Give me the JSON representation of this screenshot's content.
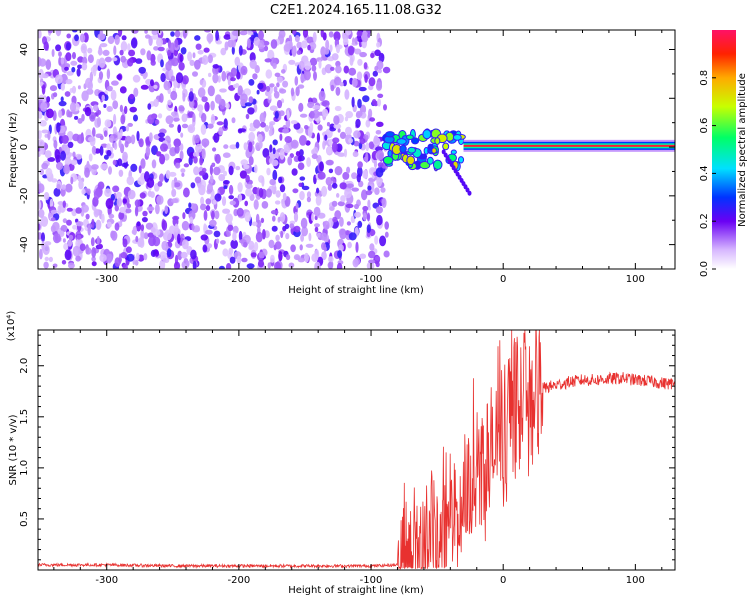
{
  "figure": {
    "title": "C2E1.2024.165.11.08.G32"
  },
  "chart_data": [
    {
      "type": "heatmap",
      "name": "spectrogram",
      "xlabel": "Height of straight line (km)",
      "ylabel": "Frequency (Hz)",
      "xlim": [
        -352,
        130
      ],
      "ylim": [
        -50,
        48
      ],
      "xticks": [
        -300,
        -200,
        -100,
        0,
        100
      ],
      "xtick_labels": [
        "-300",
        "-200",
        "-100",
        "0",
        "100"
      ],
      "yticks": [
        -40,
        -20,
        0,
        20,
        40
      ],
      "ytick_labels": [
        "-40",
        "-20",
        "0",
        "20",
        "40"
      ],
      "colorbar": {
        "label": "Normalized spectral amplitude",
        "range": [
          0,
          1
        ],
        "ticks": [
          0.0,
          0.2,
          0.4,
          0.6,
          0.8
        ],
        "tick_labels": [
          "0.0",
          "0.2",
          "0.4",
          "0.6",
          "0.8"
        ]
      },
      "regions": [
        {
          "kind": "noise",
          "x_range": [
            -352,
            -88
          ],
          "y_range": [
            -50,
            48
          ],
          "amplitude_range": [
            0.02,
            0.25
          ]
        },
        {
          "kind": "carrier-line",
          "x_range": [
            -30,
            130
          ],
          "y": 0.5,
          "amplitude": 0.95
        },
        {
          "kind": "transition-clutter",
          "x_range": [
            -88,
            -30
          ],
          "y_range": [
            -20,
            10
          ],
          "amplitude_range": [
            0.2,
            0.8
          ]
        }
      ]
    },
    {
      "type": "line",
      "name": "snr",
      "xlabel": "Height of straight line (km)",
      "ylabel": "SNR (10 * v/v)",
      "scale_label": "(x10⁴)",
      "xlim": [
        -352,
        130
      ],
      "ylim": [
        0,
        2.35
      ],
      "xticks": [
        -300,
        -200,
        -100,
        0,
        100
      ],
      "xtick_labels": [
        "-300",
        "-200",
        "-100",
        "0",
        "100"
      ],
      "yticks": [
        0.5,
        1.0,
        1.5,
        2.0
      ],
      "ytick_labels": [
        "0.5",
        "1.0",
        "1.5",
        "2.0"
      ],
      "series": [
        {
          "color": "#e8312f",
          "x": [
            -352,
            -300,
            -250,
            -200,
            -150,
            -100,
            -80,
            -60,
            -50,
            -40,
            -35,
            -30,
            -25,
            -20,
            -15,
            -10,
            -5,
            0,
            5,
            10,
            15,
            20,
            25,
            30,
            40,
            50,
            60,
            70,
            80,
            90,
            100,
            110,
            120,
            130
          ],
          "y": [
            0.05,
            0.05,
            0.04,
            0.04,
            0.04,
            0.04,
            0.05,
            0.15,
            0.3,
            0.45,
            0.6,
            0.7,
            0.85,
            0.95,
            1.05,
            1.1,
            1.2,
            1.3,
            1.45,
            1.6,
            1.68,
            1.72,
            1.75,
            1.78,
            1.81,
            1.84,
            1.86,
            1.86,
            1.87,
            1.88,
            1.86,
            1.85,
            1.83,
            1.82
          ]
        }
      ]
    }
  ],
  "colors": {
    "snr_line": "#e8312f",
    "noise_purple": "#6a00f4",
    "background": "#ffffff"
  }
}
